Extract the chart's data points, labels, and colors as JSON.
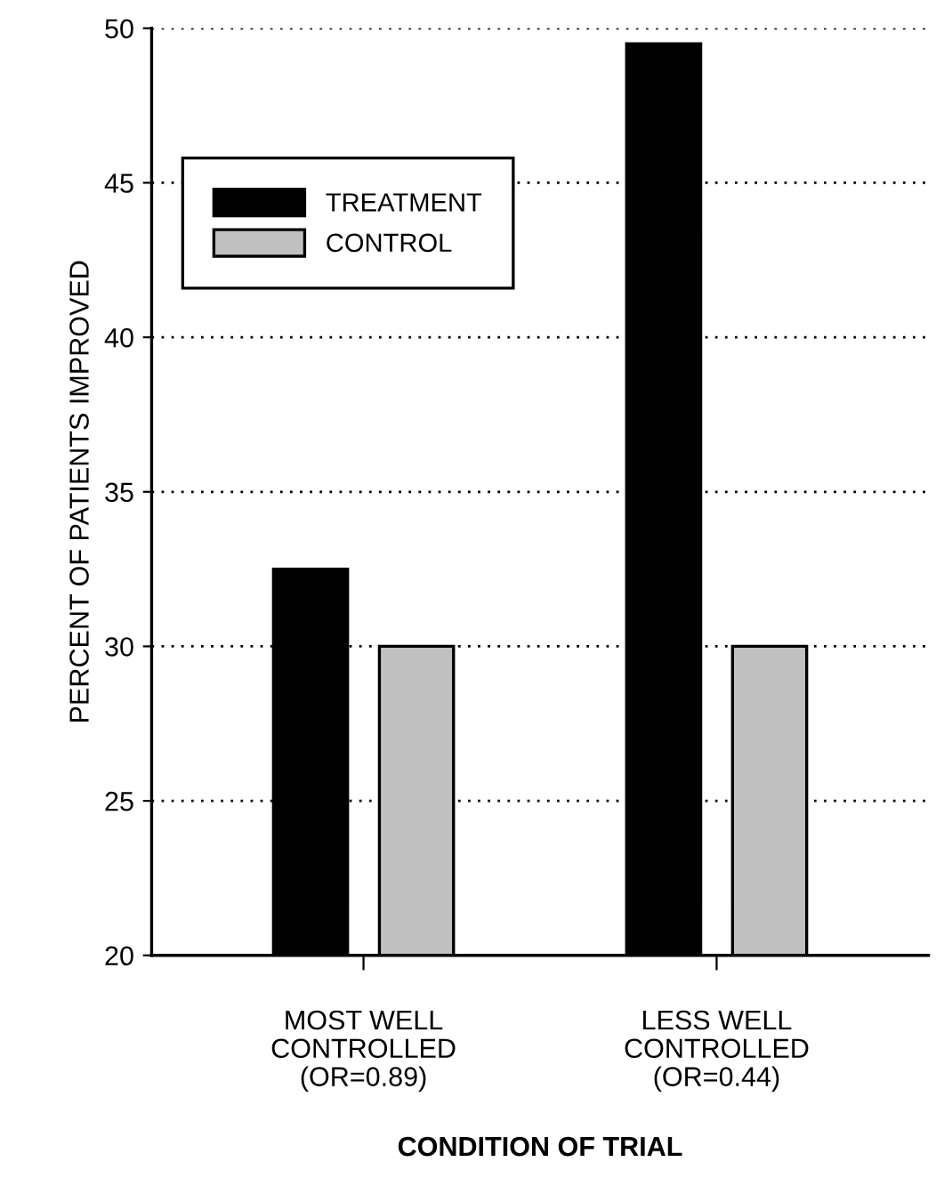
{
  "chart_data": {
    "type": "bar",
    "xlabel": "CONDITION OF TRIAL",
    "ylabel": "PERCENT OF PATIENTS IMPROVED",
    "categories": [
      "MOST WELL\nCONTROLLED\n(OR=0.89)",
      "LESS WELL\nCONTROLLED\n(OR=0.44)"
    ],
    "series": [
      {
        "name": "TREATMENT",
        "color": "#000000",
        "values": [
          32.5,
          49.5
        ]
      },
      {
        "name": "CONTROL",
        "color": "#c0c0c0",
        "values": [
          30,
          30
        ]
      }
    ],
    "ylim": [
      20,
      50
    ],
    "yticks": [
      20,
      25,
      30,
      35,
      40,
      45,
      50
    ],
    "grid": "y",
    "legend": "top left"
  }
}
